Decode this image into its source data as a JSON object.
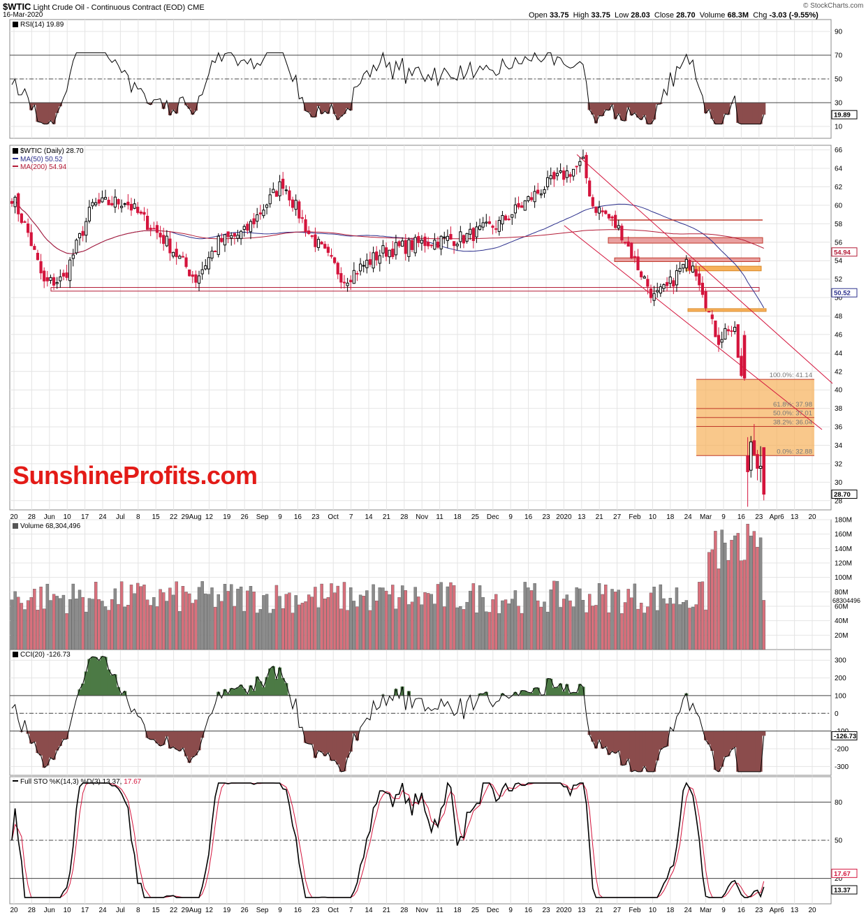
{
  "header": {
    "symbol": "$WTIC",
    "name": "Light Crude Oil - Continuous Contract (EOD)",
    "exchange": "CME",
    "date": "16-Mar-2020",
    "open_label": "Open",
    "open": "33.75",
    "high_label": "High",
    "high": "33.75",
    "low_label": "Low",
    "low": "28.03",
    "close_label": "Close",
    "close": "28.70",
    "volume_label": "Volume",
    "volume": "68.3M",
    "chg_label": "Chg",
    "chg": "-3.03 (-9.55%)",
    "credit": "© StockCharts.com"
  },
  "watermark": "SunshineProfits.com",
  "panels": {
    "rsi": {
      "label": "RSI(14) 19.89"
    },
    "price": {
      "label": "$WTIC (Daily) 28.70",
      "ma50_label": "MA(50) 50.52",
      "ma200_label": "MA(200) 54.94"
    },
    "volume": {
      "label": "Volume 68,304,496"
    },
    "cci": {
      "label": "CCI(20) -126.73"
    },
    "sto": {
      "label": "Full STO %K(14,3) %D(3) 13.37,",
      "d_value": "17.67"
    }
  },
  "colors": {
    "up": "#000000",
    "down": "#d4143c",
    "vol_up": "#8c8c8c",
    "vol_down": "#d9707c",
    "ma50": "#2b2f8c",
    "ma200": "#b31b36",
    "fib": "#f7b15a",
    "fill_pos": "#4c7a45",
    "fill_neg": "#8b4c4c"
  },
  "chart_data": [
    {
      "type": "line",
      "title": "RSI(14) 19.89",
      "series": [
        {
          "name": "RSI(14)",
          "last": 19.89
        }
      ],
      "y_ticks": [
        "90",
        "70",
        "50",
        "30",
        "10"
      ],
      "value_tag": "19.89",
      "ylim": [
        0,
        100
      ],
      "reference_lines": [
        70,
        50,
        30
      ]
    },
    {
      "type": "candlestick",
      "title": "$WTIC (Daily) 28.70",
      "series": [
        {
          "name": "$WTIC",
          "last": 28.7
        },
        {
          "name": "MA(50)",
          "last": 50.52
        },
        {
          "name": "MA(200)",
          "last": 54.94
        }
      ],
      "y_ticks": [
        "66",
        "64",
        "62",
        "60",
        "58",
        "56",
        "54",
        "52",
        "50",
        "48",
        "46",
        "44",
        "42",
        "40",
        "38",
        "36",
        "34",
        "32",
        "30",
        "28"
      ],
      "value_tags": [
        "54.94",
        "50.52",
        "28.70"
      ],
      "ylim": [
        27,
        66.5
      ],
      "fib_labels": [
        "100.0%: 41.14",
        "61.8%: 37.98",
        "50.0%: 37.01",
        "38.2%: 36.04",
        "0.0%: 32.88"
      ],
      "fib_levels": [
        41.14,
        37.98,
        37.01,
        36.04,
        32.88
      ],
      "resistance_levels": [
        58.4,
        56.2,
        54.1,
        51.0,
        50.8
      ],
      "key_candles_2020": [
        {
          "date": "Mar-6",
          "open": 45.9,
          "high": 46.4,
          "low": 41.0,
          "close": 41.28
        },
        {
          "date": "Mar-9",
          "open": 32.87,
          "high": 34.88,
          "low": 27.34,
          "close": 31.13
        },
        {
          "date": "Mar-10",
          "open": 31.3,
          "high": 35.0,
          "low": 30.5,
          "close": 34.36
        },
        {
          "date": "Mar-11",
          "open": 34.5,
          "high": 36.3,
          "low": 32.9,
          "close": 32.98
        },
        {
          "date": "Mar-12",
          "open": 33.0,
          "high": 33.5,
          "low": 30.2,
          "close": 31.5
        },
        {
          "date": "Mar-13",
          "open": 31.5,
          "high": 33.9,
          "low": 30.0,
          "close": 31.73
        },
        {
          "date": "Mar-16",
          "open": 33.75,
          "high": 33.75,
          "low": 28.03,
          "close": 28.7
        }
      ]
    },
    {
      "type": "bar",
      "title": "Volume 68,304,496",
      "series": [
        {
          "name": "Volume",
          "last": 68304496
        }
      ],
      "y_ticks": [
        "180M",
        "160M",
        "140M",
        "120M",
        "100M",
        "80M",
        "60M",
        "40M",
        "20M"
      ],
      "value_tag": "68304496",
      "ylim": [
        0,
        180000000
      ]
    },
    {
      "type": "line",
      "title": "CCI(20) -126.73",
      "series": [
        {
          "name": "CCI(20)",
          "last": -126.73
        }
      ],
      "y_ticks": [
        "300",
        "200",
        "100",
        "0",
        "-100",
        "-200",
        "-300"
      ],
      "value_tag": "-126.73",
      "ylim": [
        -350,
        360
      ],
      "reference_lines": [
        100,
        0,
        -100
      ]
    },
    {
      "type": "line",
      "title": "Full STO %K(14,3) %D(3) 13.37, 17.67",
      "series": [
        {
          "name": "%K(14,3)",
          "last": 13.37
        },
        {
          "name": "%D(3)",
          "last": 17.67
        }
      ],
      "y_ticks": [
        "80",
        "50",
        "20"
      ],
      "value_tags": [
        "17.67",
        "13.37"
      ],
      "ylim": [
        0,
        100
      ],
      "reference_lines": [
        80,
        50,
        20
      ]
    }
  ],
  "x_axis": {
    "ticks": [
      "20",
      "28",
      "Jun",
      "10",
      "17",
      "24",
      "Jul",
      "8",
      "15",
      "22",
      "29Aug",
      "12",
      "19",
      "26",
      "Sep",
      "9",
      "16",
      "23",
      "Oct",
      "7",
      "14",
      "21",
      "28",
      "Nov",
      "11",
      "18",
      "25",
      "Dec",
      "9",
      "16",
      "23",
      "2020",
      "13",
      "21",
      "27",
      "Feb",
      "10",
      "18",
      "24",
      "Mar",
      "9",
      "16",
      "23",
      "Apr6",
      "13",
      "20"
    ]
  }
}
